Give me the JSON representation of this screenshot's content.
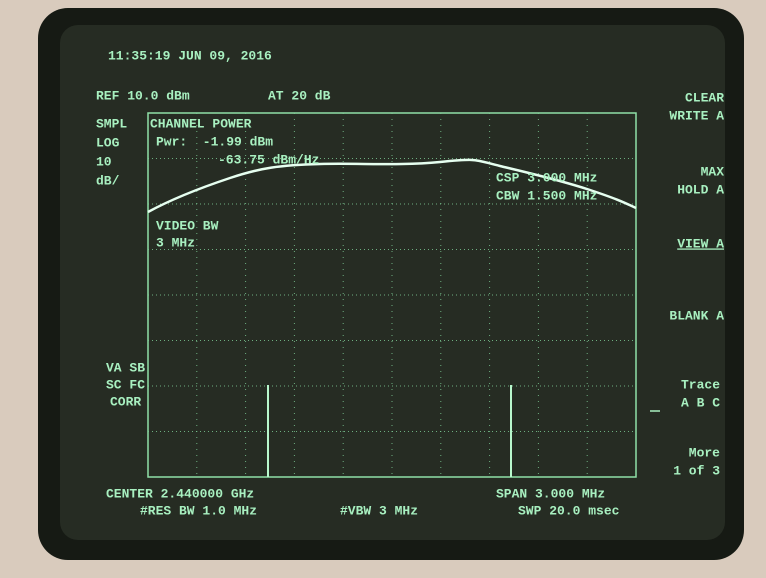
{
  "header": {
    "timestamp": "11:35:19 JUN 09, 2016",
    "reference_level": "REF 10.0 dBm",
    "attenuation": "AT 20 dB"
  },
  "left_annotations": [
    "SMPL",
    "LOG",
    "10",
    "dB/"
  ],
  "channel_power": {
    "title": "CHANNEL POWER",
    "power": "Pwr:  -1.99 dBm",
    "density": "-63.75 dBm/Hz",
    "spacing": "CSP 3.000 MHz",
    "bandwidth": "CBW 1.500 MHz"
  },
  "video_bw": {
    "label": "VIDEO BW",
    "value": "3 MHz"
  },
  "corrections": [
    "VA SB",
    "SC FC",
    "CORR"
  ],
  "footer": {
    "center": "CENTER 2.440000 GHz",
    "res_bw": "#RES BW 1.0 MHz",
    "vbw": "#VBW 3 MHz",
    "span": "SPAN 3.000 MHz",
    "sweep": "SWP 20.0 msec"
  },
  "softkeys": [
    {
      "lines": [
        "CLEAR",
        "WRITE A"
      ]
    },
    {
      "lines": [
        "MAX",
        "HOLD A"
      ]
    },
    {
      "lines": [
        "VIEW A"
      ]
    },
    {
      "lines": [
        "BLANK A"
      ]
    },
    {
      "lines": [
        "Trace",
        "A B C"
      ]
    },
    {
      "lines": [
        "More",
        "1 of 3"
      ]
    }
  ]
}
